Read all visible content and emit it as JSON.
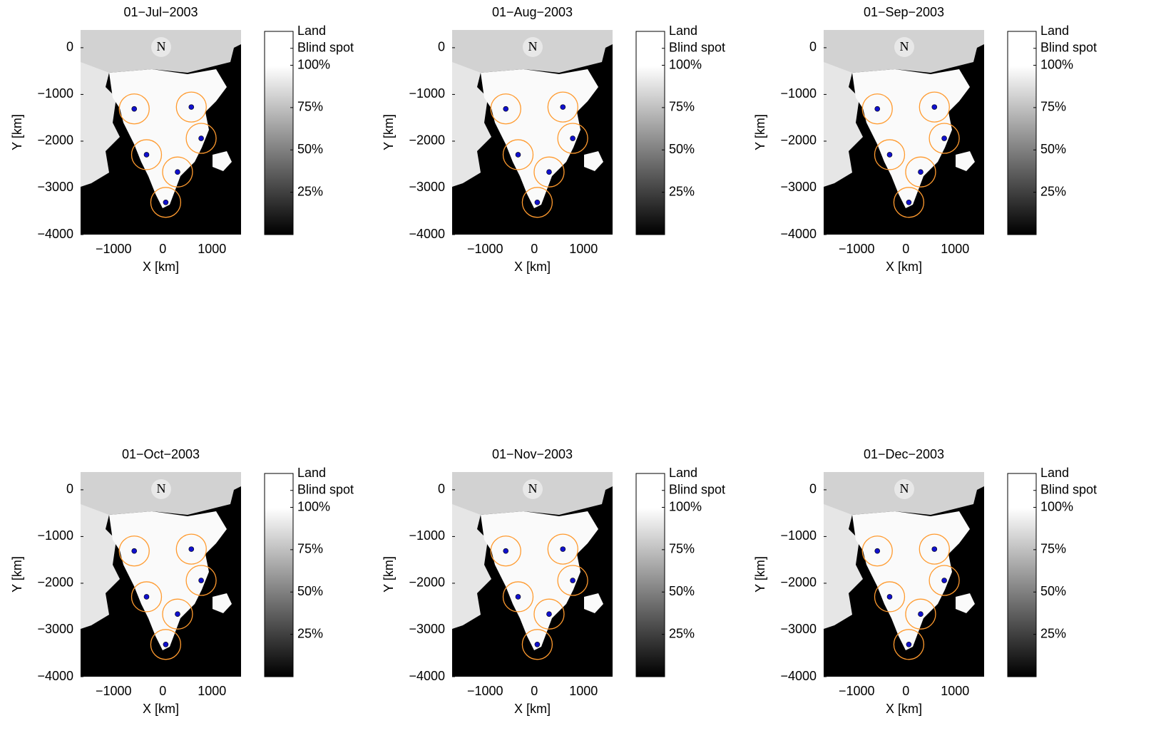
{
  "chart_data": [
    {
      "type": "scatter",
      "title": "01−Jul−2003",
      "xlabel": "X [km]",
      "ylabel": "Y [km]",
      "north_label": "N",
      "xlim": [
        -1670,
        1590
      ],
      "ylim": [
        -4000,
        380
      ],
      "xticks": [
        {
          "value": -1000,
          "label": "−1000"
        },
        0,
        1000
      ],
      "yticks": [
        {
          "value": -4000,
          "label": "−4000"
        },
        {
          "value": -3000,
          "label": "−3000"
        },
        {
          "value": -2000,
          "label": "−2000"
        },
        {
          "value": -1000,
          "label": "−1000"
        },
        0
      ],
      "x": [
        -580,
        580,
        780,
        -330,
        300,
        60
      ],
      "y": [
        -1310,
        -1270,
        -1940,
        -2290,
        -2660,
        -3310
      ],
      "color": "#1010cc",
      "ring_color": "#ff9a2e",
      "clim": [
        0,
        120
      ],
      "cticks": [
        {
          "value": 25,
          "label": "25%"
        },
        {
          "value": 50,
          "label": "50%"
        },
        {
          "value": 75,
          "label": "75%"
        },
        {
          "value": 100,
          "label": "100%"
        },
        {
          "value": 110,
          "label": "Blind spot"
        },
        {
          "value": 120,
          "label": "Land"
        }
      ]
    },
    {
      "type": "scatter",
      "title": "01−Aug−2003",
      "xlabel": "X [km]",
      "ylabel": "Y [km]",
      "north_label": "N",
      "xlim": [
        -1670,
        1590
      ],
      "ylim": [
        -4000,
        380
      ],
      "xticks": [
        {
          "value": -1000,
          "label": "−1000"
        },
        0,
        1000
      ],
      "yticks": [
        {
          "value": -4000,
          "label": "−4000"
        },
        {
          "value": -3000,
          "label": "−3000"
        },
        {
          "value": -2000,
          "label": "−2000"
        },
        {
          "value": -1000,
          "label": "−1000"
        },
        0
      ],
      "x": [
        -580,
        580,
        780,
        -330,
        300,
        60
      ],
      "y": [
        -1310,
        -1270,
        -1940,
        -2290,
        -2660,
        -3310
      ],
      "color": "#1010cc",
      "ring_color": "#ff9a2e",
      "clim": [
        0,
        120
      ],
      "cticks": [
        {
          "value": 25,
          "label": "25%"
        },
        {
          "value": 50,
          "label": "50%"
        },
        {
          "value": 75,
          "label": "75%"
        },
        {
          "value": 100,
          "label": "100%"
        },
        {
          "value": 110,
          "label": "Blind spot"
        },
        {
          "value": 120,
          "label": "Land"
        }
      ]
    },
    {
      "type": "scatter",
      "title": "01−Sep−2003",
      "xlabel": "X [km]",
      "ylabel": "Y [km]",
      "north_label": "N",
      "xlim": [
        -1670,
        1590
      ],
      "ylim": [
        -4000,
        380
      ],
      "xticks": [
        {
          "value": -1000,
          "label": "−1000"
        },
        0,
        1000
      ],
      "yticks": [
        {
          "value": -4000,
          "label": "−4000"
        },
        {
          "value": -3000,
          "label": "−3000"
        },
        {
          "value": -2000,
          "label": "−2000"
        },
        {
          "value": -1000,
          "label": "−1000"
        },
        0
      ],
      "x": [
        -580,
        580,
        780,
        -330,
        300,
        60
      ],
      "y": [
        -1310,
        -1270,
        -1940,
        -2290,
        -2660,
        -3310
      ],
      "color": "#1010cc",
      "ring_color": "#ff9a2e",
      "clim": [
        0,
        120
      ],
      "cticks": [
        {
          "value": 25,
          "label": "25%"
        },
        {
          "value": 50,
          "label": "50%"
        },
        {
          "value": 75,
          "label": "75%"
        },
        {
          "value": 100,
          "label": "100%"
        },
        {
          "value": 110,
          "label": "Blind spot"
        },
        {
          "value": 120,
          "label": "Land"
        }
      ]
    },
    {
      "type": "scatter",
      "title": "01−Oct−2003",
      "xlabel": "X [km]",
      "ylabel": "Y [km]",
      "north_label": "N",
      "xlim": [
        -1670,
        1590
      ],
      "ylim": [
        -4000,
        380
      ],
      "xticks": [
        {
          "value": -1000,
          "label": "−1000"
        },
        0,
        1000
      ],
      "yticks": [
        {
          "value": -4000,
          "label": "−4000"
        },
        {
          "value": -3000,
          "label": "−3000"
        },
        {
          "value": -2000,
          "label": "−2000"
        },
        {
          "value": -1000,
          "label": "−1000"
        },
        0
      ],
      "x": [
        -580,
        580,
        780,
        -330,
        300,
        60
      ],
      "y": [
        -1310,
        -1270,
        -1940,
        -2290,
        -2660,
        -3310
      ],
      "color": "#1010cc",
      "ring_color": "#ff9a2e",
      "clim": [
        0,
        120
      ],
      "cticks": [
        {
          "value": 25,
          "label": "25%"
        },
        {
          "value": 50,
          "label": "50%"
        },
        {
          "value": 75,
          "label": "75%"
        },
        {
          "value": 100,
          "label": "100%"
        },
        {
          "value": 110,
          "label": "Blind spot"
        },
        {
          "value": 120,
          "label": "Land"
        }
      ]
    },
    {
      "type": "scatter",
      "title": "01−Nov−2003",
      "xlabel": "X [km]",
      "ylabel": "Y [km]",
      "north_label": "N",
      "xlim": [
        -1670,
        1590
      ],
      "ylim": [
        -4000,
        380
      ],
      "xticks": [
        {
          "value": -1000,
          "label": "−1000"
        },
        0,
        1000
      ],
      "yticks": [
        {
          "value": -4000,
          "label": "−4000"
        },
        {
          "value": -3000,
          "label": "−3000"
        },
        {
          "value": -2000,
          "label": "−2000"
        },
        {
          "value": -1000,
          "label": "−1000"
        },
        0
      ],
      "x": [
        -580,
        580,
        780,
        -330,
        300,
        60
      ],
      "y": [
        -1310,
        -1270,
        -1940,
        -2290,
        -2660,
        -3310
      ],
      "color": "#1010cc",
      "ring_color": "#ff9a2e",
      "clim": [
        0,
        120
      ],
      "cticks": [
        {
          "value": 25,
          "label": "25%"
        },
        {
          "value": 50,
          "label": "50%"
        },
        {
          "value": 75,
          "label": "75%"
        },
        {
          "value": 100,
          "label": "100%"
        },
        {
          "value": 110,
          "label": "Blind spot"
        },
        {
          "value": 120,
          "label": "Land"
        }
      ]
    },
    {
      "type": "scatter",
      "title": "01−Dec−2003",
      "xlabel": "X [km]",
      "ylabel": "Y [km]",
      "north_label": "N",
      "xlim": [
        -1670,
        1590
      ],
      "ylim": [
        -4000,
        380
      ],
      "xticks": [
        {
          "value": -1000,
          "label": "−1000"
        },
        0,
        1000
      ],
      "yticks": [
        {
          "value": -4000,
          "label": "−4000"
        },
        {
          "value": -3000,
          "label": "−3000"
        },
        {
          "value": -2000,
          "label": "−2000"
        },
        {
          "value": -1000,
          "label": "−1000"
        },
        0
      ],
      "x": [
        -580,
        580,
        780,
        -330,
        300,
        60
      ],
      "y": [
        -1310,
        -1270,
        -1940,
        -2290,
        -2660,
        -3310
      ],
      "color": "#1010cc",
      "ring_color": "#ff9a2e",
      "clim": [
        0,
        120
      ],
      "cticks": [
        {
          "value": 25,
          "label": "25%"
        },
        {
          "value": 50,
          "label": "50%"
        },
        {
          "value": 75,
          "label": "75%"
        },
        {
          "value": 100,
          "label": "100%"
        },
        {
          "value": 110,
          "label": "Blind spot"
        },
        {
          "value": 120,
          "label": "Land"
        }
      ]
    }
  ]
}
